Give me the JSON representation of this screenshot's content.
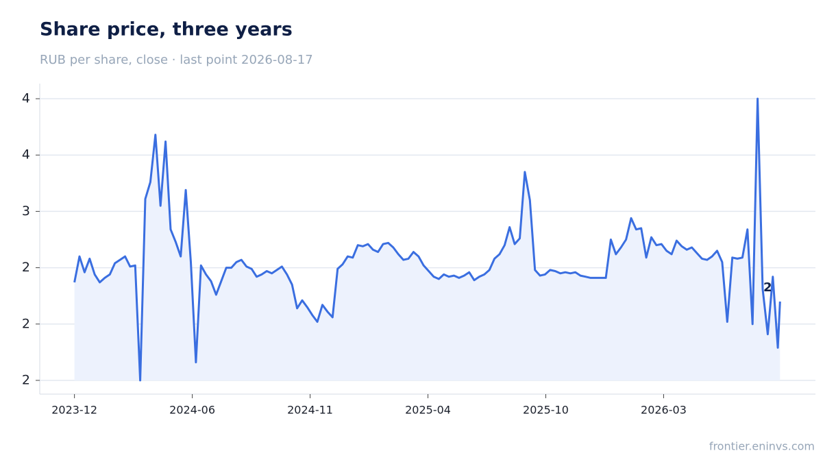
{
  "chart_data": {
    "type": "line",
    "title": "Share price, three years",
    "subtitle": "RUB per share, close · last point 2026-08-17",
    "source": "frontier.eninvs.com",
    "last_label": "2",
    "grid": true,
    "area": true,
    "xlim": [
      "2023-10-28",
      "2026-10-05"
    ],
    "ylim": [
      1.378,
      4.134
    ],
    "xticks": [
      {
        "value": "2023-12-15",
        "label": "2023-12"
      },
      {
        "value": "2024-05-26",
        "label": "2024-06"
      },
      {
        "value": "2024-11-05",
        "label": "2024-11"
      },
      {
        "value": "2025-04-17",
        "label": "2025-04"
      },
      {
        "value": "2025-09-27",
        "label": "2025-10"
      },
      {
        "value": "2026-03-09",
        "label": "2026-03"
      }
    ],
    "yticks": [
      {
        "value": 1.5,
        "label": "2"
      },
      {
        "value": 2.0,
        "label": "2"
      },
      {
        "value": 2.5,
        "label": "2"
      },
      {
        "value": 3.0,
        "label": "3"
      },
      {
        "value": 3.5,
        "label": "4"
      },
      {
        "value": 4.0,
        "label": "4"
      }
    ],
    "x": [
      "2023-12-15",
      "2023-12-22",
      "2023-12-29",
      "2024-01-05",
      "2024-01-12",
      "2024-01-19",
      "2024-01-26",
      "2024-02-02",
      "2024-02-09",
      "2024-02-16",
      "2024-02-23",
      "2024-03-01",
      "2024-03-08",
      "2024-03-15",
      "2024-03-22",
      "2024-03-29",
      "2024-04-05",
      "2024-04-12",
      "2024-04-19",
      "2024-04-26",
      "2024-05-03",
      "2024-05-10",
      "2024-05-17",
      "2024-05-24",
      "2024-05-31",
      "2024-06-07",
      "2024-06-14",
      "2024-06-21",
      "2024-06-28",
      "2024-07-05",
      "2024-07-12",
      "2024-07-19",
      "2024-07-26",
      "2024-08-02",
      "2024-08-09",
      "2024-08-16",
      "2024-08-23",
      "2024-08-30",
      "2024-09-06",
      "2024-09-13",
      "2024-09-20",
      "2024-09-27",
      "2024-10-04",
      "2024-10-11",
      "2024-10-18",
      "2024-10-25",
      "2024-11-01",
      "2024-11-08",
      "2024-11-15",
      "2024-11-22",
      "2024-11-29",
      "2024-12-06",
      "2024-12-13",
      "2024-12-20",
      "2024-12-27",
      "2025-01-03",
      "2025-01-10",
      "2025-01-17",
      "2025-01-24",
      "2025-01-31",
      "2025-02-07",
      "2025-02-14",
      "2025-02-21",
      "2025-02-28",
      "2025-03-07",
      "2025-03-14",
      "2025-03-21",
      "2025-03-28",
      "2025-04-04",
      "2025-04-11",
      "2025-04-18",
      "2025-04-25",
      "2025-05-02",
      "2025-05-09",
      "2025-05-16",
      "2025-05-23",
      "2025-05-30",
      "2025-06-06",
      "2025-06-13",
      "2025-06-20",
      "2025-06-27",
      "2025-07-04",
      "2025-07-11",
      "2025-07-18",
      "2025-07-25",
      "2025-08-01",
      "2025-08-08",
      "2025-08-15",
      "2025-08-22",
      "2025-08-29",
      "2025-09-05",
      "2025-09-12",
      "2025-09-19",
      "2025-09-26",
      "2025-10-03",
      "2025-10-10",
      "2025-10-17",
      "2025-10-24",
      "2025-10-31",
      "2025-11-07",
      "2025-11-14",
      "2025-11-21",
      "2025-11-28",
      "2025-12-05",
      "2025-12-12",
      "2025-12-19",
      "2025-12-26",
      "2026-01-02",
      "2026-01-09",
      "2026-01-16",
      "2026-01-23",
      "2026-01-30",
      "2026-02-06",
      "2026-02-13",
      "2026-02-20",
      "2026-02-27",
      "2026-03-06",
      "2026-03-13",
      "2026-03-20",
      "2026-03-27",
      "2026-04-03",
      "2026-04-10",
      "2026-04-17",
      "2026-04-24",
      "2026-05-01",
      "2026-05-08",
      "2026-05-15",
      "2026-05-22",
      "2026-05-29",
      "2026-06-05",
      "2026-06-12",
      "2026-06-19",
      "2026-06-26",
      "2026-07-03",
      "2026-07-10",
      "2026-07-17",
      "2026-07-24",
      "2026-07-31",
      "2026-08-07",
      "2026-08-14",
      "2026-08-17"
    ],
    "series": [
      {
        "name": "Close",
        "color": "#3a6ee0",
        "fill": "#edf2fd",
        "values": [
          2.37,
          2.6,
          2.46,
          2.58,
          2.44,
          2.37,
          2.41,
          2.44,
          2.54,
          2.57,
          2.6,
          2.51,
          2.52,
          1.5,
          3.11,
          3.26,
          3.68,
          3.05,
          3.62,
          2.84,
          2.73,
          2.6,
          3.19,
          2.55,
          1.66,
          2.52,
          2.44,
          2.38,
          2.26,
          2.38,
          2.5,
          2.5,
          2.55,
          2.57,
          2.51,
          2.49,
          2.42,
          2.44,
          2.47,
          2.45,
          2.48,
          2.51,
          2.44,
          2.35,
          2.14,
          2.21,
          2.15,
          2.08,
          2.02,
          2.17,
          2.11,
          2.06,
          2.49,
          2.53,
          2.6,
          2.59,
          2.7,
          2.69,
          2.71,
          2.66,
          2.64,
          2.71,
          2.72,
          2.68,
          2.62,
          2.57,
          2.58,
          2.64,
          2.6,
          2.52,
          2.47,
          2.42,
          2.4,
          2.44,
          2.42,
          2.43,
          2.41,
          2.43,
          2.46,
          2.39,
          2.42,
          2.44,
          2.48,
          2.58,
          2.62,
          2.7,
          2.86,
          2.71,
          2.76,
          3.35,
          3.1,
          2.48,
          2.43,
          2.44,
          2.48,
          2.47,
          2.45,
          2.46,
          2.45,
          2.46,
          2.43,
          2.42,
          2.41,
          2.41,
          2.41,
          2.41,
          2.75,
          2.62,
          2.68,
          2.75,
          2.94,
          2.84,
          2.85,
          2.59,
          2.77,
          2.7,
          2.71,
          2.65,
          2.62,
          2.74,
          2.69,
          2.66,
          2.68,
          2.63,
          2.58,
          2.57,
          2.6,
          2.65,
          2.55,
          2.02,
          2.59,
          2.58,
          2.59,
          2.84,
          2.0,
          4.0,
          2.31,
          1.91,
          2.42,
          1.79,
          2.2
        ]
      }
    ]
  }
}
